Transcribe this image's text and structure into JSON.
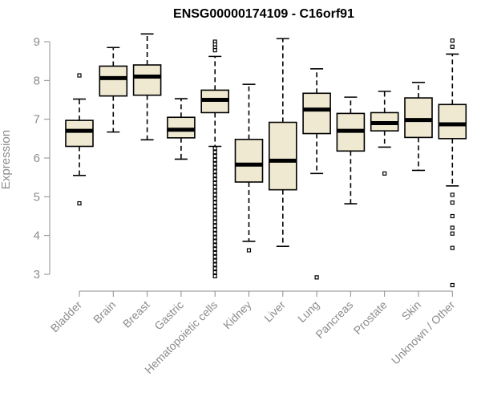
{
  "chart_data": {
    "type": "boxplot",
    "title": "ENSG00000174109 - C16orf91",
    "ylabel": "Expression",
    "xlabel": "",
    "ylim": [
      2.7,
      9.3
    ],
    "yticks": [
      3,
      4,
      5,
      6,
      7,
      8,
      9
    ],
    "box_fill": "#efe9d2",
    "box_stroke": "#000000",
    "axis_color": "#8c8c8c",
    "categories": [
      {
        "label": "Bladder",
        "lower_whisker": 5.55,
        "q1": 6.3,
        "median": 6.7,
        "q3": 6.97,
        "upper_whisker": 7.52,
        "outliers": [
          8.13,
          4.83
        ]
      },
      {
        "label": "Brain",
        "lower_whisker": 6.67,
        "q1": 7.6,
        "median": 8.06,
        "q3": 8.37,
        "upper_whisker": 8.85,
        "outliers": []
      },
      {
        "label": "Breast",
        "lower_whisker": 6.47,
        "q1": 7.62,
        "median": 8.1,
        "q3": 8.4,
        "upper_whisker": 9.2,
        "outliers": []
      },
      {
        "label": "Gastric",
        "lower_whisker": 5.97,
        "q1": 6.52,
        "median": 6.73,
        "q3": 7.05,
        "upper_whisker": 7.53,
        "outliers": []
      },
      {
        "label": "Hematopoietic cells",
        "lower_whisker": 6.3,
        "q1": 7.17,
        "median": 7.5,
        "q3": 7.75,
        "upper_whisker": 8.62,
        "outliers": [
          9.0,
          8.93,
          8.85,
          8.78,
          6.25,
          6.15,
          6.05,
          5.95,
          5.85,
          5.75,
          5.65,
          5.55,
          5.45,
          5.35,
          5.25,
          5.15,
          5.05,
          4.95,
          4.85,
          4.75,
          4.65,
          4.55,
          4.45,
          4.35,
          4.25,
          4.15,
          4.05,
          3.95,
          3.85,
          3.75,
          3.65,
          3.55,
          3.45,
          3.35,
          3.25,
          3.15,
          3.05,
          2.95
        ]
      },
      {
        "label": "Kidney",
        "lower_whisker": 3.85,
        "q1": 5.38,
        "median": 5.83,
        "q3": 6.48,
        "upper_whisker": 7.9,
        "outliers": [
          3.62
        ]
      },
      {
        "label": "Liver",
        "lower_whisker": 3.72,
        "q1": 5.18,
        "median": 5.93,
        "q3": 6.92,
        "upper_whisker": 9.08,
        "outliers": []
      },
      {
        "label": "Lung",
        "lower_whisker": 5.6,
        "q1": 6.63,
        "median": 7.25,
        "q3": 7.67,
        "upper_whisker": 8.3,
        "outliers": [
          2.92
        ]
      },
      {
        "label": "Pancreas",
        "lower_whisker": 4.82,
        "q1": 6.18,
        "median": 6.7,
        "q3": 7.15,
        "upper_whisker": 7.57,
        "outliers": []
      },
      {
        "label": "Prostate",
        "lower_whisker": 6.28,
        "q1": 6.7,
        "median": 6.9,
        "q3": 7.17,
        "upper_whisker": 7.72,
        "outliers": [
          5.6
        ]
      },
      {
        "label": "Skin",
        "lower_whisker": 5.68,
        "q1": 6.53,
        "median": 6.98,
        "q3": 7.55,
        "upper_whisker": 7.95,
        "outliers": []
      },
      {
        "label": "Unknown / Other",
        "lower_whisker": 5.28,
        "q1": 6.5,
        "median": 6.87,
        "q3": 7.38,
        "upper_whisker": 8.68,
        "outliers": [
          9.03,
          8.87,
          5.05,
          4.85,
          4.5,
          4.2,
          4.05,
          3.68,
          2.72
        ]
      }
    ]
  }
}
